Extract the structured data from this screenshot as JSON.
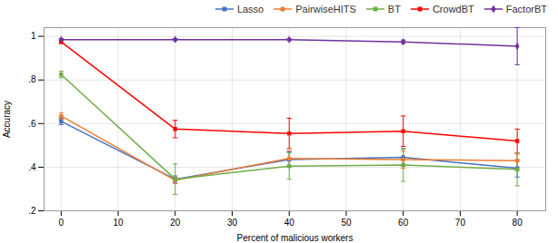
{
  "chart_data": {
    "type": "line",
    "xlabel": "Percent of malicious workers",
    "ylabel": "Accuracy",
    "x": [
      0,
      20,
      40,
      60,
      80
    ],
    "series": [
      {
        "name": "Lasso",
        "color": "#4472C4",
        "marker": "square",
        "values": [
          0.61,
          0.345,
          0.435,
          0.445,
          0.395
        ],
        "yerr": [
          0.015,
          0.015,
          0.035,
          0.04,
          0.04
        ]
      },
      {
        "name": "PairwiseHITS",
        "color": "#ED7D31",
        "marker": "circle",
        "values": [
          0.635,
          0.34,
          0.44,
          0.435,
          0.43
        ],
        "yerr": [
          0.015,
          0.015,
          0.035,
          0.04,
          0.03
        ]
      },
      {
        "name": "BT",
        "color": "#70AD47",
        "marker": "square",
        "values": [
          0.825,
          0.345,
          0.405,
          0.41,
          0.39
        ],
        "yerr": [
          0.015,
          0.07,
          0.06,
          0.075,
          0.075
        ]
      },
      {
        "name": "CrowdBT",
        "color": "#FF0000",
        "marker": "square",
        "values": [
          0.975,
          0.575,
          0.555,
          0.565,
          0.52
        ],
        "yerr": [
          0.008,
          0.04,
          0.07,
          0.07,
          0.055
        ]
      },
      {
        "name": "FactorBT",
        "color": "#7030A0",
        "marker": "diamond",
        "values": [
          0.985,
          0.985,
          0.985,
          0.975,
          0.955
        ],
        "yerr": [
          0.005,
          0.005,
          0.005,
          0.008,
          0.085
        ]
      }
    ],
    "xlim": [
      -3,
      85
    ],
    "ylim": [
      0.2,
      1.04
    ],
    "xticks": [
      0,
      10,
      20,
      30,
      40,
      50,
      60,
      70,
      80
    ],
    "yticks": [
      {
        "value": 0.2,
        "label": ".2"
      },
      {
        "value": 0.4,
        "label": ".4"
      },
      {
        "value": 0.6,
        "label": ".6"
      },
      {
        "value": 0.8,
        "label": ".8"
      },
      1
    ],
    "grid": true,
    "legend": "upper right"
  }
}
